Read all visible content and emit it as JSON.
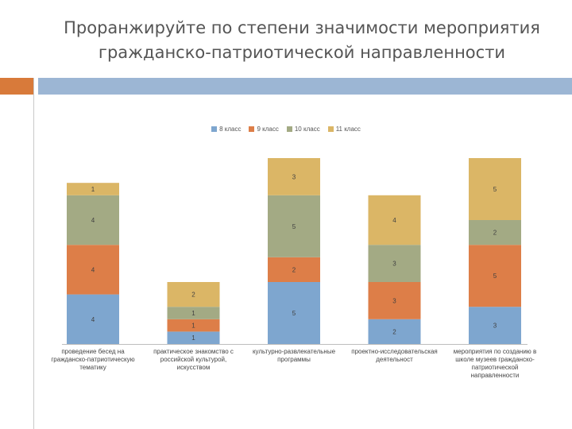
{
  "slide": {
    "title_line1": "Проранжируйте по степени значимости мероприятия",
    "title_line2": "гражданско-патриотической направленности"
  },
  "colors": {
    "accent_orange": "#d87a3a",
    "accent_blue": "#9cb6d4"
  },
  "chart_data": {
    "type": "bar",
    "stacked": true,
    "title": "",
    "xlabel": "",
    "ylabel": "",
    "legend_position": "top",
    "categories": [
      "проведение бесед на гражданско-патриотическую тематику",
      "практическое знакомство с российской культурой, искусством",
      "культурно-развлекательные программы",
      "проектно-исследовательская деятельност",
      "мероприятия по созданию в школе музеев гражданско-патриотической направленности"
    ],
    "series": [
      {
        "name": "8 класс",
        "color": "#7ea6cf",
        "values": [
          4,
          1,
          5,
          2,
          3
        ]
      },
      {
        "name": "9 класс",
        "color": "#dd7e48",
        "values": [
          4,
          1,
          2,
          3,
          5
        ]
      },
      {
        "name": "10 класс",
        "color": "#a3aa84",
        "values": [
          4,
          1,
          5,
          3,
          2
        ]
      },
      {
        "name": "11 класс",
        "color": "#dbb666",
        "values": [
          1,
          2,
          3,
          4,
          5
        ]
      }
    ]
  }
}
